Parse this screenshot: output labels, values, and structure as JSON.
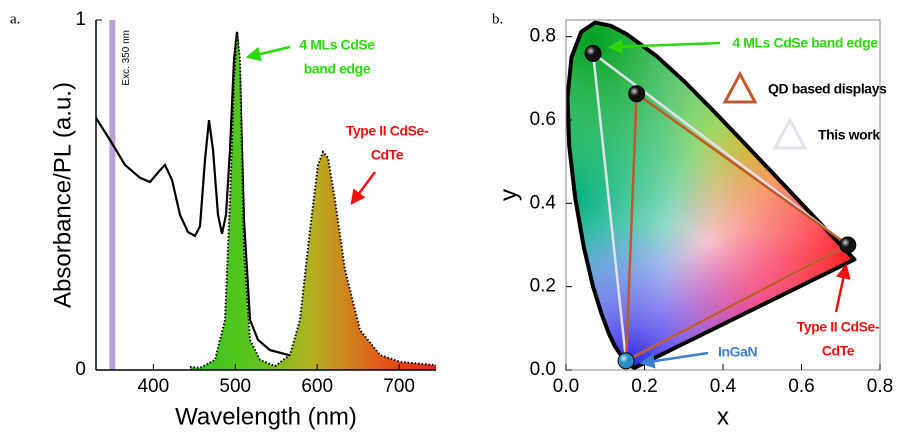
{
  "chart_data": [
    {
      "type": "line",
      "panel_label": "a.",
      "xlabel": "Wavelength (nm)",
      "ylabel": "Absorbance/PL (a.u.)",
      "xlim": [
        330,
        745
      ],
      "ylim": [
        0,
        1
      ],
      "xticks": [
        400,
        500,
        600,
        700
      ],
      "yticks": [
        0,
        1
      ],
      "excitation": {
        "label": "Exc. 350 nm",
        "x": 350,
        "color": "#b9a3d6"
      },
      "series": [
        {
          "color": "#000000",
          "style": "solid",
          "x": [
            330,
            347.1,
            365.4,
            383.7,
            395.9,
            408.1,
            414.2,
            422.8,
            432.5,
            442.3,
            450.8,
            456.9,
            463.0,
            467.9,
            472.8,
            478.9,
            483.8,
            488.7,
            493.6,
            498.4,
            502.1,
            505.8,
            510.6,
            518.0,
            527.7,
            542.4,
            579.0,
            640.0,
            701.0,
            745
          ],
          "values": [
            0.72,
            0.657,
            0.586,
            0.549,
            0.537,
            0.571,
            0.586,
            0.543,
            0.443,
            0.394,
            0.383,
            0.411,
            0.6,
            0.714,
            0.629,
            0.443,
            0.389,
            0.443,
            0.629,
            0.886,
            0.966,
            0.829,
            0.429,
            0.143,
            0.086,
            0.057,
            0.034,
            0.02,
            0.011,
            0.009
          ]
        },
        {
          "color": "#000000",
          "style": "dotted",
          "fill_colors": [
            "#2ec81e",
            "#5cc41e",
            "#b6b020",
            "#e0601a",
            "#e42810"
          ],
          "x": [
            444.7,
            456.9,
            475.2,
            487.5,
            493.6,
            498.4,
            502.1,
            505.8,
            510.6,
            518.0,
            530.2,
            548.5,
            566.8,
            579.0,
            591.2,
            601.0,
            607.1,
            613.2,
            621.7,
            633.9,
            652.2,
            676.6,
            701.0,
            745
          ],
          "values": [
            0.009,
            0.006,
            0.029,
            0.143,
            0.486,
            0.829,
            0.966,
            0.886,
            0.343,
            0.086,
            0.029,
            0.011,
            0.043,
            0.143,
            0.4,
            0.586,
            0.623,
            0.606,
            0.486,
            0.286,
            0.114,
            0.043,
            0.023,
            0.014
          ]
        }
      ],
      "annotations": [
        {
          "lines": [
            "4 MLs CdSe",
            "band edge"
          ],
          "color": "#2bd80c"
        },
        {
          "lines": [
            "Type II CdSe-",
            "CdTe"
          ],
          "color": "#f01010"
        }
      ]
    },
    {
      "type": "scatter",
      "panel_label": "b.",
      "xlabel": "x",
      "ylabel": "y",
      "xlim": [
        0,
        0.8
      ],
      "ylim": [
        0,
        0.84
      ],
      "xticks": [
        {
          "value": 0,
          "label": "0.0"
        },
        {
          "value": 0.2,
          "label": "0.2"
        },
        {
          "value": 0.4,
          "label": "0.4"
        },
        {
          "value": 0.6,
          "label": "0.6"
        },
        {
          "value": 0.8,
          "label": "0.8"
        }
      ],
      "yticks": [
        {
          "value": 0,
          "label": "0.0"
        },
        {
          "value": 0.2,
          "label": "0.2"
        },
        {
          "value": 0.4,
          "label": "0.4"
        },
        {
          "value": 0.6,
          "label": "0.6"
        },
        {
          "value": 0.8,
          "label": "0.8"
        }
      ],
      "locus": {
        "x": [
          0.1741,
          0.1644,
          0.1566,
          0.144,
          0.1241,
          0.1096,
          0.0913,
          0.0687,
          0.0454,
          0.0235,
          0.0082,
          0.0039,
          0.0139,
          0.0389,
          0.0743,
          0.1142,
          0.1547,
          0.2296,
          0.3016,
          0.3731,
          0.4441,
          0.5125,
          0.5752,
          0.627,
          0.6915,
          0.719,
          0.7347
        ],
        "y": [
          0.005,
          0.0109,
          0.0177,
          0.0297,
          0.0578,
          0.0868,
          0.1327,
          0.2007,
          0.295,
          0.4127,
          0.5384,
          0.6548,
          0.7502,
          0.812,
          0.8338,
          0.8262,
          0.8059,
          0.7543,
          0.6923,
          0.6245,
          0.5547,
          0.4866,
          0.4242,
          0.3725,
          0.3083,
          0.2809,
          0.2653
        ]
      },
      "series": [
        {
          "name": "QD based displays",
          "color": "#c0582a",
          "x": [
            0.18,
            0.718,
            0.153
          ],
          "y": [
            0.663,
            0.3,
            0.022
          ]
        },
        {
          "name": "This work",
          "color": "#e4e0f0",
          "x": [
            0.069,
            0.718,
            0.153
          ],
          "y": [
            0.76,
            0.3,
            0.022
          ]
        }
      ],
      "points": {
        "x": [
          0.069,
          0.18,
          0.718,
          0.153
        ],
        "y": [
          0.76,
          0.663,
          0.3,
          0.022
        ],
        "colors": [
          "#111111",
          "#111111",
          "#111111",
          "#2a8fc8"
        ]
      },
      "annotations": [
        {
          "lines": [
            "4 MLs CdSe band edge"
          ],
          "color": "#2bd80c"
        },
        {
          "lines": [
            "Type II CdSe-",
            "CdTe"
          ],
          "color": "#f01010"
        },
        {
          "lines": [
            "InGaN"
          ],
          "color": "#3b7fd0"
        }
      ]
    }
  ]
}
